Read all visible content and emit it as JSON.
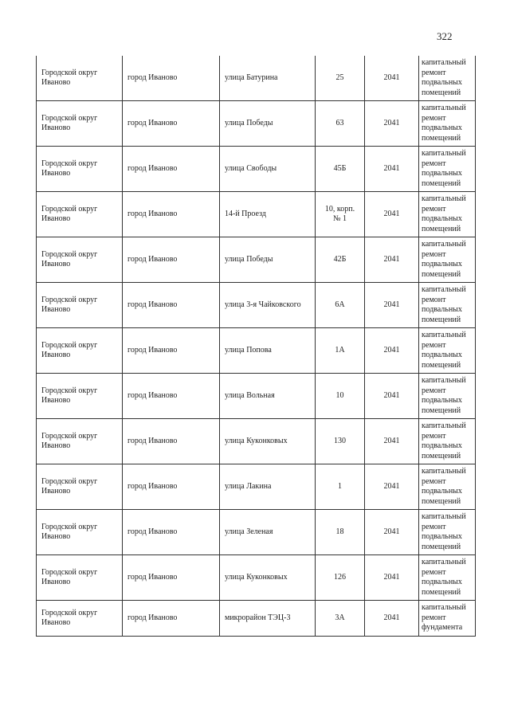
{
  "page_number": "322",
  "rows": [
    {
      "district": "Городской округ Иваново",
      "city": "город Иваново",
      "street": "улица Батурина",
      "house": "25",
      "year": "2041",
      "work": "капитальный ремонт подвальных помещений"
    },
    {
      "district": "Городской округ Иваново",
      "city": "город Иваново",
      "street": "улица Победы",
      "house": "63",
      "year": "2041",
      "work": "капитальный ремонт подвальных помещений"
    },
    {
      "district": "Городской округ Иваново",
      "city": "город Иваново",
      "street": "улица Свободы",
      "house": "45Б",
      "year": "2041",
      "work": "капитальный ремонт подвальных помещений"
    },
    {
      "district": "Городской округ Иваново",
      "city": "город Иваново",
      "street": "14-й Проезд",
      "house": "10, корп. № 1",
      "year": "2041",
      "work": "капитальный ремонт подвальных помещений"
    },
    {
      "district": "Городской округ Иваново",
      "city": "город Иваново",
      "street": "улица Победы",
      "house": "42Б",
      "year": "2041",
      "work": "капитальный ремонт подвальных помещений"
    },
    {
      "district": "Городской округ Иваново",
      "city": "город Иваново",
      "street": "улица 3-я Чайковского",
      "house": "6А",
      "year": "2041",
      "work": "капитальный ремонт подвальных помещений"
    },
    {
      "district": "Городской округ Иваново",
      "city": "город Иваново",
      "street": "улица Попова",
      "house": "1А",
      "year": "2041",
      "work": "капитальный ремонт подвальных помещений"
    },
    {
      "district": "Городской округ Иваново",
      "city": "город Иваново",
      "street": "улица Вольная",
      "house": "10",
      "year": "2041",
      "work": "капитальный ремонт подвальных помещений"
    },
    {
      "district": "Городской округ Иваново",
      "city": "город Иваново",
      "street": "улица Куконковых",
      "house": "130",
      "year": "2041",
      "work": "капитальный ремонт подвальных помещений"
    },
    {
      "district": "Городской округ Иваново",
      "city": "город Иваново",
      "street": "улица Лакина",
      "house": "1",
      "year": "2041",
      "work": "капитальный ремонт подвальных помещений"
    },
    {
      "district": "Городской округ Иваново",
      "city": "город Иваново",
      "street": "улица Зеленая",
      "house": "18",
      "year": "2041",
      "work": "капитальный ремонт подвальных помещений"
    },
    {
      "district": "Городской округ Иваново",
      "city": "город Иваново",
      "street": "улица Куконковых",
      "house": "126",
      "year": "2041",
      "work": "капитальный ремонт подвальных помещений"
    },
    {
      "district": "Городской округ Иваново",
      "city": "город Иваново",
      "street": "микрорайон ТЭЦ-3",
      "house": "3А",
      "year": "2041",
      "work": "капитальный ремонт фундамента"
    }
  ]
}
